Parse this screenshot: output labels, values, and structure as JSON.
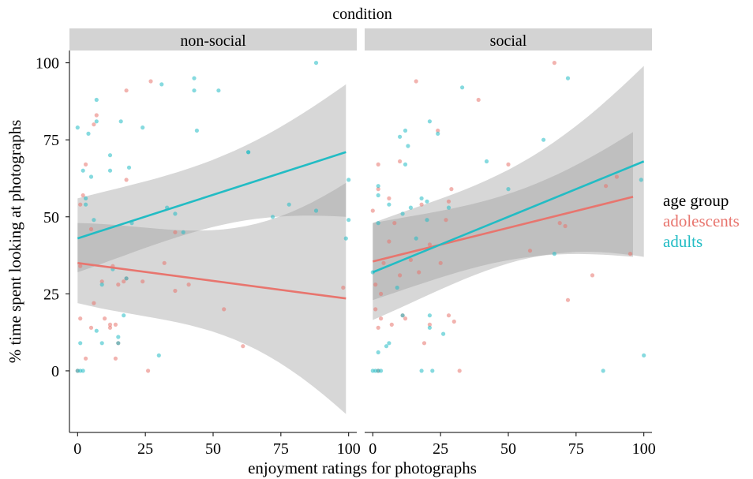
{
  "chart_data": {
    "type": "scatter",
    "facet_title": "condition",
    "xlabel": "enjoyment ratings for photographs",
    "ylabel": "% time spent looking at photographs",
    "xlim": [
      -3,
      103
    ],
    "ylim": [
      -20,
      104
    ],
    "x_ticks": [
      0,
      25,
      50,
      75,
      100
    ],
    "y_ticks": [
      0,
      25,
      50,
      75,
      100
    ],
    "legend": {
      "title": "age group",
      "position": "right",
      "entries": [
        {
          "name": "adolescents",
          "color": "#e8756e"
        },
        {
          "name": "adults",
          "color": "#22bcc4"
        }
      ]
    },
    "panels": [
      {
        "label": "non-social",
        "points": {
          "adolescents": [
            [
              0,
              0
            ],
            [
              1,
              54
            ],
            [
              1,
              17
            ],
            [
              1,
              34
            ],
            [
              2,
              57
            ],
            [
              3,
              4
            ],
            [
              3,
              67
            ],
            [
              5,
              14
            ],
            [
              5,
              46
            ],
            [
              6,
              22
            ],
            [
              6,
              80
            ],
            [
              7,
              83
            ],
            [
              9,
              29
            ],
            [
              10,
              17
            ],
            [
              12,
              14
            ],
            [
              12,
              15
            ],
            [
              13,
              34
            ],
            [
              14,
              4
            ],
            [
              14,
              15
            ],
            [
              15,
              28
            ],
            [
              15,
              9
            ],
            [
              17,
              29
            ],
            [
              18,
              30
            ],
            [
              18,
              62
            ],
            [
              18,
              91
            ],
            [
              24,
              29
            ],
            [
              26,
              0
            ],
            [
              27,
              94
            ],
            [
              32,
              35
            ],
            [
              36,
              26
            ],
            [
              36,
              45
            ],
            [
              41,
              28
            ],
            [
              54,
              20
            ],
            [
              61,
              8
            ],
            [
              98,
              27
            ]
          ],
          "adults": [
            [
              0,
              79
            ],
            [
              0,
              0
            ],
            [
              1,
              0
            ],
            [
              2,
              0
            ],
            [
              1,
              9
            ],
            [
              2,
              65
            ],
            [
              3,
              54
            ],
            [
              3,
              56
            ],
            [
              4,
              77
            ],
            [
              5,
              63
            ],
            [
              6,
              49
            ],
            [
              7,
              13
            ],
            [
              7,
              88
            ],
            [
              7,
              81
            ],
            [
              9,
              28
            ],
            [
              9,
              9
            ],
            [
              12,
              65
            ],
            [
              12,
              70
            ],
            [
              13,
              33
            ],
            [
              15,
              9
            ],
            [
              15,
              11
            ],
            [
              16,
              81
            ],
            [
              17,
              18
            ],
            [
              18,
              30
            ],
            [
              19,
              66
            ],
            [
              20,
              48
            ],
            [
              24,
              79
            ],
            [
              30,
              5
            ],
            [
              31,
              93
            ],
            [
              33,
              53
            ],
            [
              36,
              51
            ],
            [
              39,
              45
            ],
            [
              43,
              91
            ],
            [
              43,
              95
            ],
            [
              44,
              78
            ],
            [
              52,
              91
            ],
            [
              63,
              71
            ],
            [
              63,
              71
            ],
            [
              72,
              50
            ],
            [
              78,
              54
            ],
            [
              88,
              52
            ],
            [
              88,
              100
            ],
            [
              100,
              49
            ],
            [
              99,
              43
            ],
            [
              100,
              62
            ]
          ]
        },
        "fits": {
          "adolescents": {
            "x": [
              0,
              99
            ],
            "y": [
              35,
              23.5
            ],
            "ci_lower": [
              22,
              -14
            ],
            "ci_upper": [
              48,
              61
            ]
          },
          "adults": {
            "x": [
              0,
              99
            ],
            "y": [
              43,
              71
            ],
            "ci_lower": [
              32,
              50
            ],
            "ci_upper": [
              56,
              93
            ]
          }
        }
      },
      {
        "label": "social",
        "points": {
          "adolescents": [
            [
              0,
              52
            ],
            [
              1,
              20
            ],
            [
              1,
              28
            ],
            [
              2,
              67
            ],
            [
              2,
              59
            ],
            [
              2,
              14
            ],
            [
              2,
              0
            ],
            [
              3,
              17
            ],
            [
              3,
              25
            ],
            [
              4,
              35
            ],
            [
              6,
              42
            ],
            [
              6,
              56
            ],
            [
              7,
              15
            ],
            [
              8,
              48
            ],
            [
              10,
              31
            ],
            [
              10,
              68
            ],
            [
              11,
              18
            ],
            [
              12,
              17
            ],
            [
              14,
              36
            ],
            [
              16,
              94
            ],
            [
              17,
              32
            ],
            [
              18,
              54
            ],
            [
              19,
              9
            ],
            [
              21,
              41
            ],
            [
              21,
              15
            ],
            [
              24,
              78
            ],
            [
              25,
              35
            ],
            [
              27,
              49
            ],
            [
              28,
              18
            ],
            [
              28,
              55
            ],
            [
              29,
              59
            ],
            [
              30,
              16
            ],
            [
              32,
              0
            ],
            [
              39,
              88
            ],
            [
              50,
              67
            ],
            [
              58,
              39
            ],
            [
              67,
              100
            ],
            [
              69,
              48
            ],
            [
              71,
              47
            ],
            [
              72,
              23
            ],
            [
              81,
              31
            ],
            [
              86,
              60
            ],
            [
              90,
              63
            ],
            [
              95,
              38
            ]
          ],
          "adults": [
            [
              0,
              32
            ],
            [
              0,
              0
            ],
            [
              1,
              0
            ],
            [
              2,
              57
            ],
            [
              2,
              60
            ],
            [
              2,
              48
            ],
            [
              2,
              6
            ],
            [
              2,
              0
            ],
            [
              3,
              0
            ],
            [
              5,
              8
            ],
            [
              6,
              9
            ],
            [
              6,
              54
            ],
            [
              9,
              27
            ],
            [
              10,
              76
            ],
            [
              11,
              51
            ],
            [
              11,
              18
            ],
            [
              12,
              78
            ],
            [
              12,
              67
            ],
            [
              13,
              73
            ],
            [
              14,
              53
            ],
            [
              16,
              43
            ],
            [
              18,
              56
            ],
            [
              18,
              0
            ],
            [
              20,
              49
            ],
            [
              20,
              55
            ],
            [
              21,
              81
            ],
            [
              21,
              14
            ],
            [
              21,
              18
            ],
            [
              22,
              0
            ],
            [
              24,
              77
            ],
            [
              26,
              12
            ],
            [
              28,
              53
            ],
            [
              33,
              92
            ],
            [
              42,
              68
            ],
            [
              50,
              59
            ],
            [
              63,
              75
            ],
            [
              67,
              38
            ],
            [
              72,
              95
            ],
            [
              85,
              0
            ],
            [
              99,
              62
            ],
            [
              100,
              5
            ]
          ]
        },
        "fits": {
          "adolescents": {
            "x": [
              0,
              96
            ],
            "y": [
              35.5,
              56.5
            ],
            "ci_lower": [
              23,
              37
            ],
            "ci_upper": [
              48,
              77.5
            ]
          },
          "adults": {
            "x": [
              0,
              100
            ],
            "y": [
              32,
              68
            ],
            "ci_lower": [
              16.5,
              37
            ],
            "ci_upper": [
              48,
              99
            ]
          }
        }
      }
    ]
  }
}
